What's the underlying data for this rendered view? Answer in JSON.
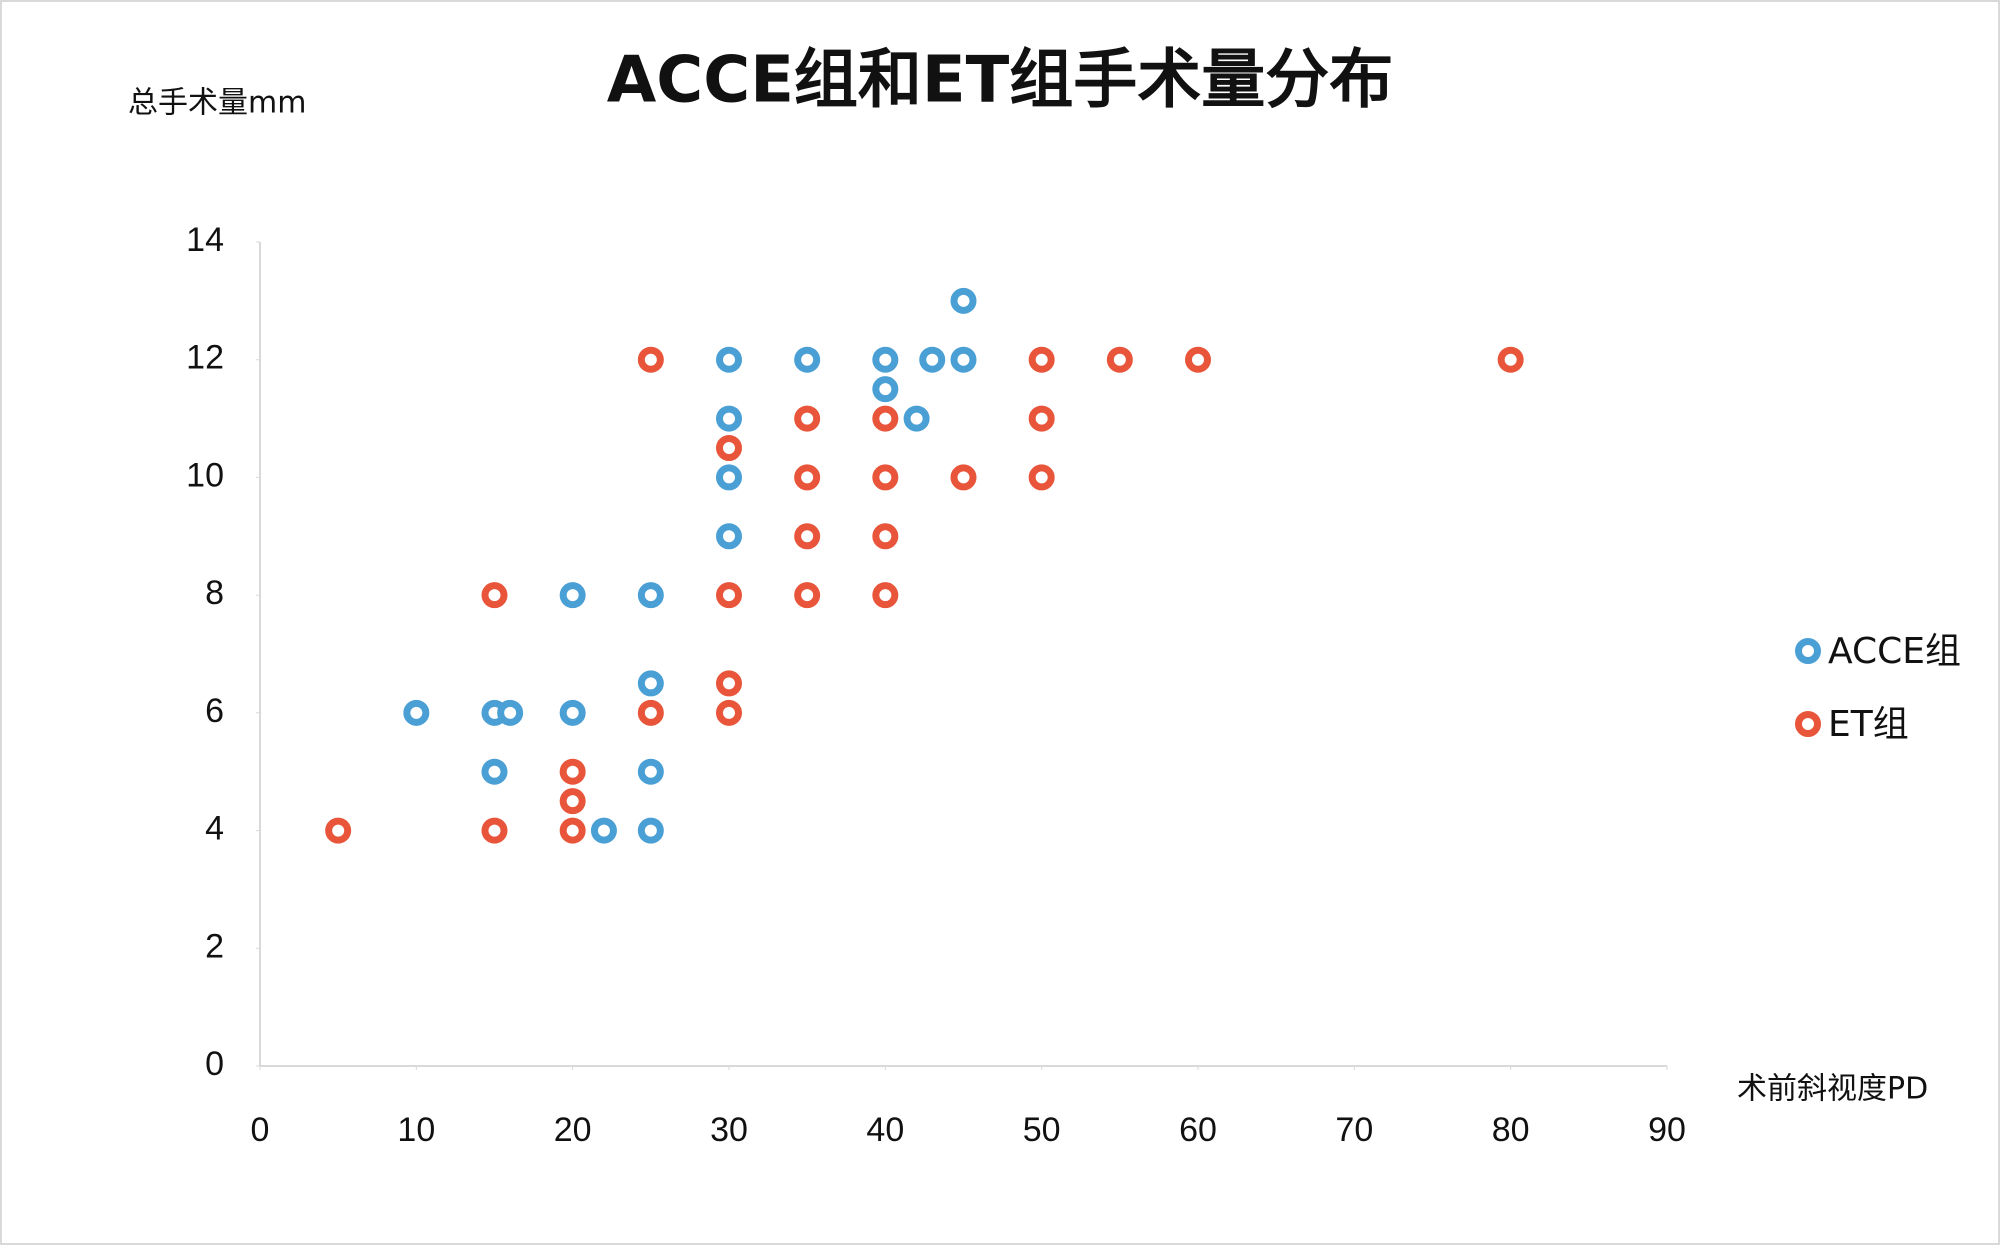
{
  "chart_data": {
    "type": "scatter",
    "title": "ACCE组和ET组手术量分布",
    "x_label": "术前斜视度PD",
    "y_label": "总手术量mm",
    "xlim": [
      0,
      90
    ],
    "xticks": [
      0,
      10,
      20,
      30,
      40,
      50,
      60,
      70,
      80,
      90
    ],
    "ylim": [
      0,
      14
    ],
    "yticks": [
      0,
      2,
      4,
      6,
      8,
      10,
      12,
      14
    ],
    "legend": "right",
    "series": [
      {
        "name": "ACCE组",
        "color": "#4a9fd5",
        "x": [
          45,
          30,
          35,
          40,
          43,
          45,
          40,
          30,
          42,
          30,
          30,
          20,
          25,
          10,
          15,
          16,
          20,
          25,
          15,
          25,
          22,
          25
        ],
        "values": [
          13,
          12,
          12,
          12,
          12,
          12,
          11.5,
          11,
          11,
          10,
          9,
          8,
          8,
          6,
          6,
          6,
          6,
          6.5,
          5,
          5,
          4,
          4
        ]
      },
      {
        "name": "ET组",
        "color": "#e8553a",
        "x": [
          25,
          50,
          55,
          60,
          80,
          35,
          40,
          50,
          30,
          35,
          40,
          45,
          50,
          35,
          40,
          15,
          30,
          35,
          40,
          30,
          25,
          30,
          20,
          20,
          5,
          15,
          20
        ],
        "values": [
          12,
          12,
          12,
          12,
          12,
          11,
          11,
          11,
          10.5,
          10,
          10,
          10,
          10,
          9,
          9,
          8,
          8,
          8,
          8,
          6.5,
          6,
          6,
          5,
          4.5,
          4,
          4,
          4
        ]
      }
    ]
  }
}
